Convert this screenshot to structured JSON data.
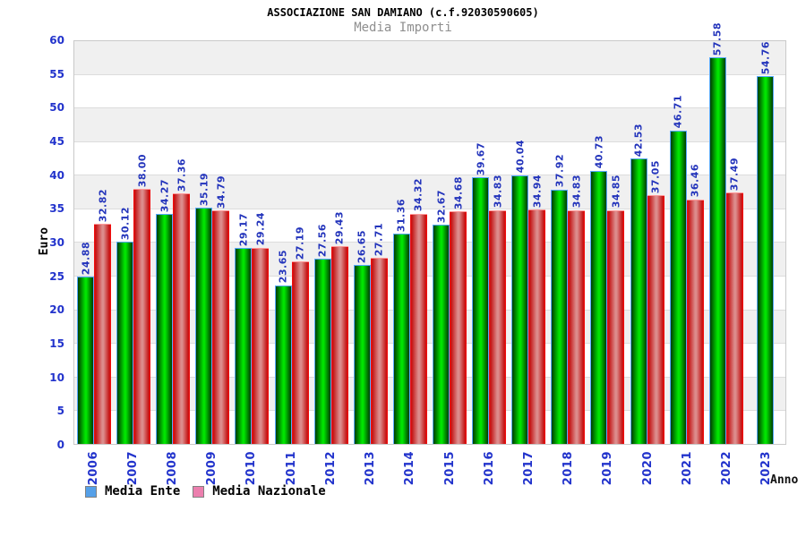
{
  "header": {
    "title": "ASSOCIAZIONE SAN DAMIANO (c.f.92030590605)",
    "subtitle": "Media Importi"
  },
  "chart_data": {
    "type": "bar",
    "title": "ASSOCIAZIONE SAN DAMIANO (c.f.92030590605)",
    "subtitle": "Media Importi",
    "xlabel": "Anno",
    "ylabel": "Euro",
    "ylim": [
      0,
      60
    ],
    "ytick_step": 5,
    "grid": "alternating-horizontal-bands",
    "legend_position": "bottom-left",
    "categories": [
      "2006",
      "2007",
      "2008",
      "2009",
      "2010",
      "2011",
      "2012",
      "2013",
      "2014",
      "2015",
      "2016",
      "2017",
      "2018",
      "2019",
      "2020",
      "2021",
      "2022",
      "2023"
    ],
    "series": [
      {
        "name": "Media Ente",
        "values": [
          24.88,
          30.12,
          34.27,
          35.19,
          29.17,
          23.65,
          27.56,
          26.65,
          31.36,
          32.67,
          39.67,
          40.04,
          37.92,
          40.73,
          42.53,
          46.71,
          57.58,
          54.76
        ],
        "labels": [
          "24.88",
          "30.12",
          "34.27",
          "35.19",
          "29.17",
          "23.65",
          "27.56",
          "26.65",
          "31.36",
          "32.67",
          "39.67",
          "40.04",
          "37.92",
          "40.73",
          "42.53",
          "46.71",
          "57.58",
          "54.76"
        ]
      },
      {
        "name": "Media Nazionale",
        "values": [
          32.82,
          38.0,
          37.36,
          34.79,
          29.24,
          27.19,
          29.43,
          27.71,
          34.32,
          34.68,
          34.83,
          34.94,
          34.83,
          34.85,
          37.05,
          36.46,
          37.49,
          null
        ],
        "labels": [
          "32.82",
          "38.00",
          "37.36",
          "34.79",
          "29.24",
          "27.19",
          "29.43",
          "27.71",
          "34.32",
          "34.68",
          "34.83",
          "34.94",
          "34.83",
          "34.85",
          "37.05",
          "36.46",
          "37.49",
          null
        ]
      }
    ]
  },
  "legend": {
    "items": [
      {
        "label": "Media Ente",
        "swatch": "#55a0e8"
      },
      {
        "label": "Media Nazionale",
        "swatch": "#ec7fae"
      }
    ]
  },
  "colors": {
    "title": "#000000",
    "subtitle": "#8f8f8f",
    "value_label": "#2233bb",
    "axis_tick": "#2233cc",
    "band_gray": "#f0f0f0",
    "grid_line": "#dcdcdc",
    "plot_border": "#c9c9c9",
    "ente_edge": "#003c00",
    "ente_center": "#00e400",
    "ente_border": "#58aaff",
    "naz_edge": "#c41414",
    "naz_center": "#dc8c8c",
    "naz_border": "#ff0c0c",
    "naz_top": "#ff9a9a"
  }
}
